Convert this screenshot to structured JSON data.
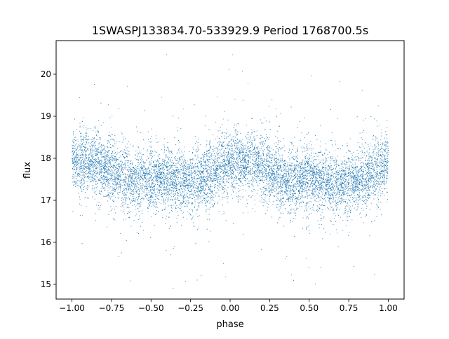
{
  "chart_data": {
    "type": "scatter",
    "title": "1SWASPJ133834.70-533929.9 Period 1768700.5s",
    "xlabel": "phase",
    "ylabel": "flux",
    "xlim": [
      -1.1,
      1.1
    ],
    "ylim": [
      14.65,
      20.8
    ],
    "x_ticks": [
      -1.0,
      -0.75,
      -0.5,
      -0.25,
      0.0,
      0.25,
      0.5,
      0.75,
      1.0
    ],
    "x_tick_labels": [
      "−1.00",
      "−0.75",
      "−0.50",
      "−0.25",
      "0.00",
      "0.25",
      "0.50",
      "0.75",
      "1.00"
    ],
    "y_ticks": [
      15,
      16,
      17,
      18,
      19,
      20
    ],
    "y_tick_labels": [
      "15",
      "16",
      "17",
      "18",
      "19",
      "20"
    ],
    "grid": false,
    "legend": "none",
    "series": [
      {
        "marker": "point",
        "color": "#1f77b4",
        "phase_range": [
          -1.0,
          1.0
        ],
        "approx_points": 9000,
        "mean_flux_profile": {
          "phase": [
            -1.0,
            -0.875,
            -0.75,
            -0.625,
            -0.5,
            -0.375,
            -0.25,
            -0.125,
            0.0,
            0.125,
            0.25,
            0.375,
            0.5,
            0.625,
            0.75,
            0.875,
            1.0
          ],
          "flux": [
            17.9,
            17.9,
            17.7,
            17.4,
            17.5,
            17.5,
            17.4,
            17.6,
            17.95,
            17.9,
            17.7,
            17.4,
            17.55,
            17.4,
            17.4,
            17.55,
            17.9
          ]
        },
        "typical_scatter": 0.45,
        "flux_extremes": [
          14.9,
          20.5
        ]
      }
    ]
  }
}
